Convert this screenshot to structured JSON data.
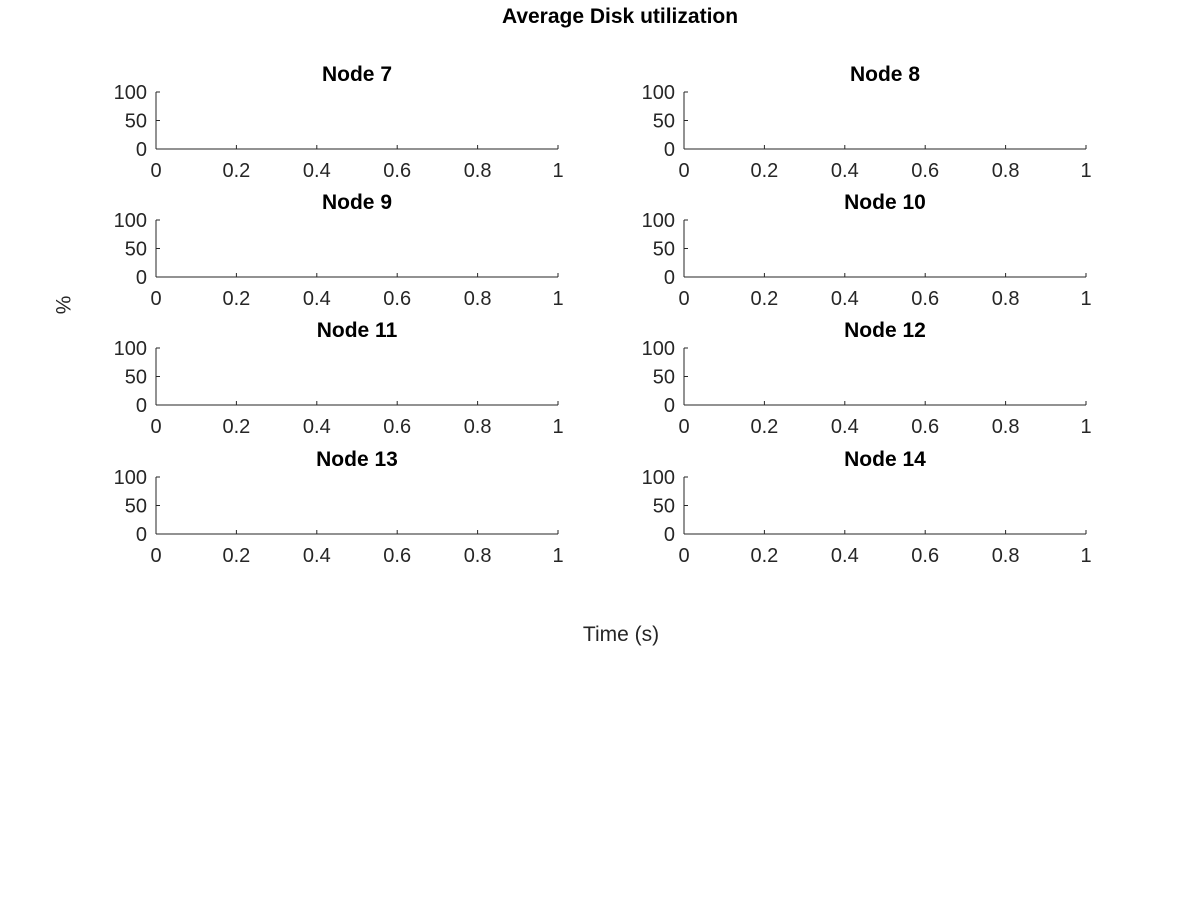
{
  "chart_data": {
    "type": "line",
    "title": "Average Disk utilization",
    "xlabel": "Time (s)",
    "ylabel": "%",
    "grid": false,
    "legend": "none",
    "axis_color": "#262626",
    "panels": [
      {
        "title": "Node 7",
        "xlim": [
          0,
          1
        ],
        "ylim": [
          0,
          100
        ],
        "xticks": [
          "0",
          "0.2",
          "0.4",
          "0.6",
          "0.8",
          "1"
        ],
        "yticks": [
          "0",
          "50",
          "100"
        ],
        "series": []
      },
      {
        "title": "Node 8",
        "xlim": [
          0,
          1
        ],
        "ylim": [
          0,
          100
        ],
        "xticks": [
          "0",
          "0.2",
          "0.4",
          "0.6",
          "0.8",
          "1"
        ],
        "yticks": [
          "0",
          "50",
          "100"
        ],
        "series": []
      },
      {
        "title": "Node 9",
        "xlim": [
          0,
          1
        ],
        "ylim": [
          0,
          100
        ],
        "xticks": [
          "0",
          "0.2",
          "0.4",
          "0.6",
          "0.8",
          "1"
        ],
        "yticks": [
          "0",
          "50",
          "100"
        ],
        "series": []
      },
      {
        "title": "Node 10",
        "xlim": [
          0,
          1
        ],
        "ylim": [
          0,
          100
        ],
        "xticks": [
          "0",
          "0.2",
          "0.4",
          "0.6",
          "0.8",
          "1"
        ],
        "yticks": [
          "0",
          "50",
          "100"
        ],
        "series": []
      },
      {
        "title": "Node 11",
        "xlim": [
          0,
          1
        ],
        "ylim": [
          0,
          100
        ],
        "xticks": [
          "0",
          "0.2",
          "0.4",
          "0.6",
          "0.8",
          "1"
        ],
        "yticks": [
          "0",
          "50",
          "100"
        ],
        "series": []
      },
      {
        "title": "Node 12",
        "xlim": [
          0,
          1
        ],
        "ylim": [
          0,
          100
        ],
        "xticks": [
          "0",
          "0.2",
          "0.4",
          "0.6",
          "0.8",
          "1"
        ],
        "yticks": [
          "0",
          "50",
          "100"
        ],
        "series": []
      },
      {
        "title": "Node 13",
        "xlim": [
          0,
          1
        ],
        "ylim": [
          0,
          100
        ],
        "xticks": [
          "0",
          "0.2",
          "0.4",
          "0.6",
          "0.8",
          "1"
        ],
        "yticks": [
          "0",
          "50",
          "100"
        ],
        "series": []
      },
      {
        "title": "Node 14",
        "xlim": [
          0,
          1
        ],
        "ylim": [
          0,
          100
        ],
        "xticks": [
          "0",
          "0.2",
          "0.4",
          "0.6",
          "0.8",
          "1"
        ],
        "yticks": [
          "0",
          "50",
          "100"
        ],
        "series": []
      }
    ]
  }
}
